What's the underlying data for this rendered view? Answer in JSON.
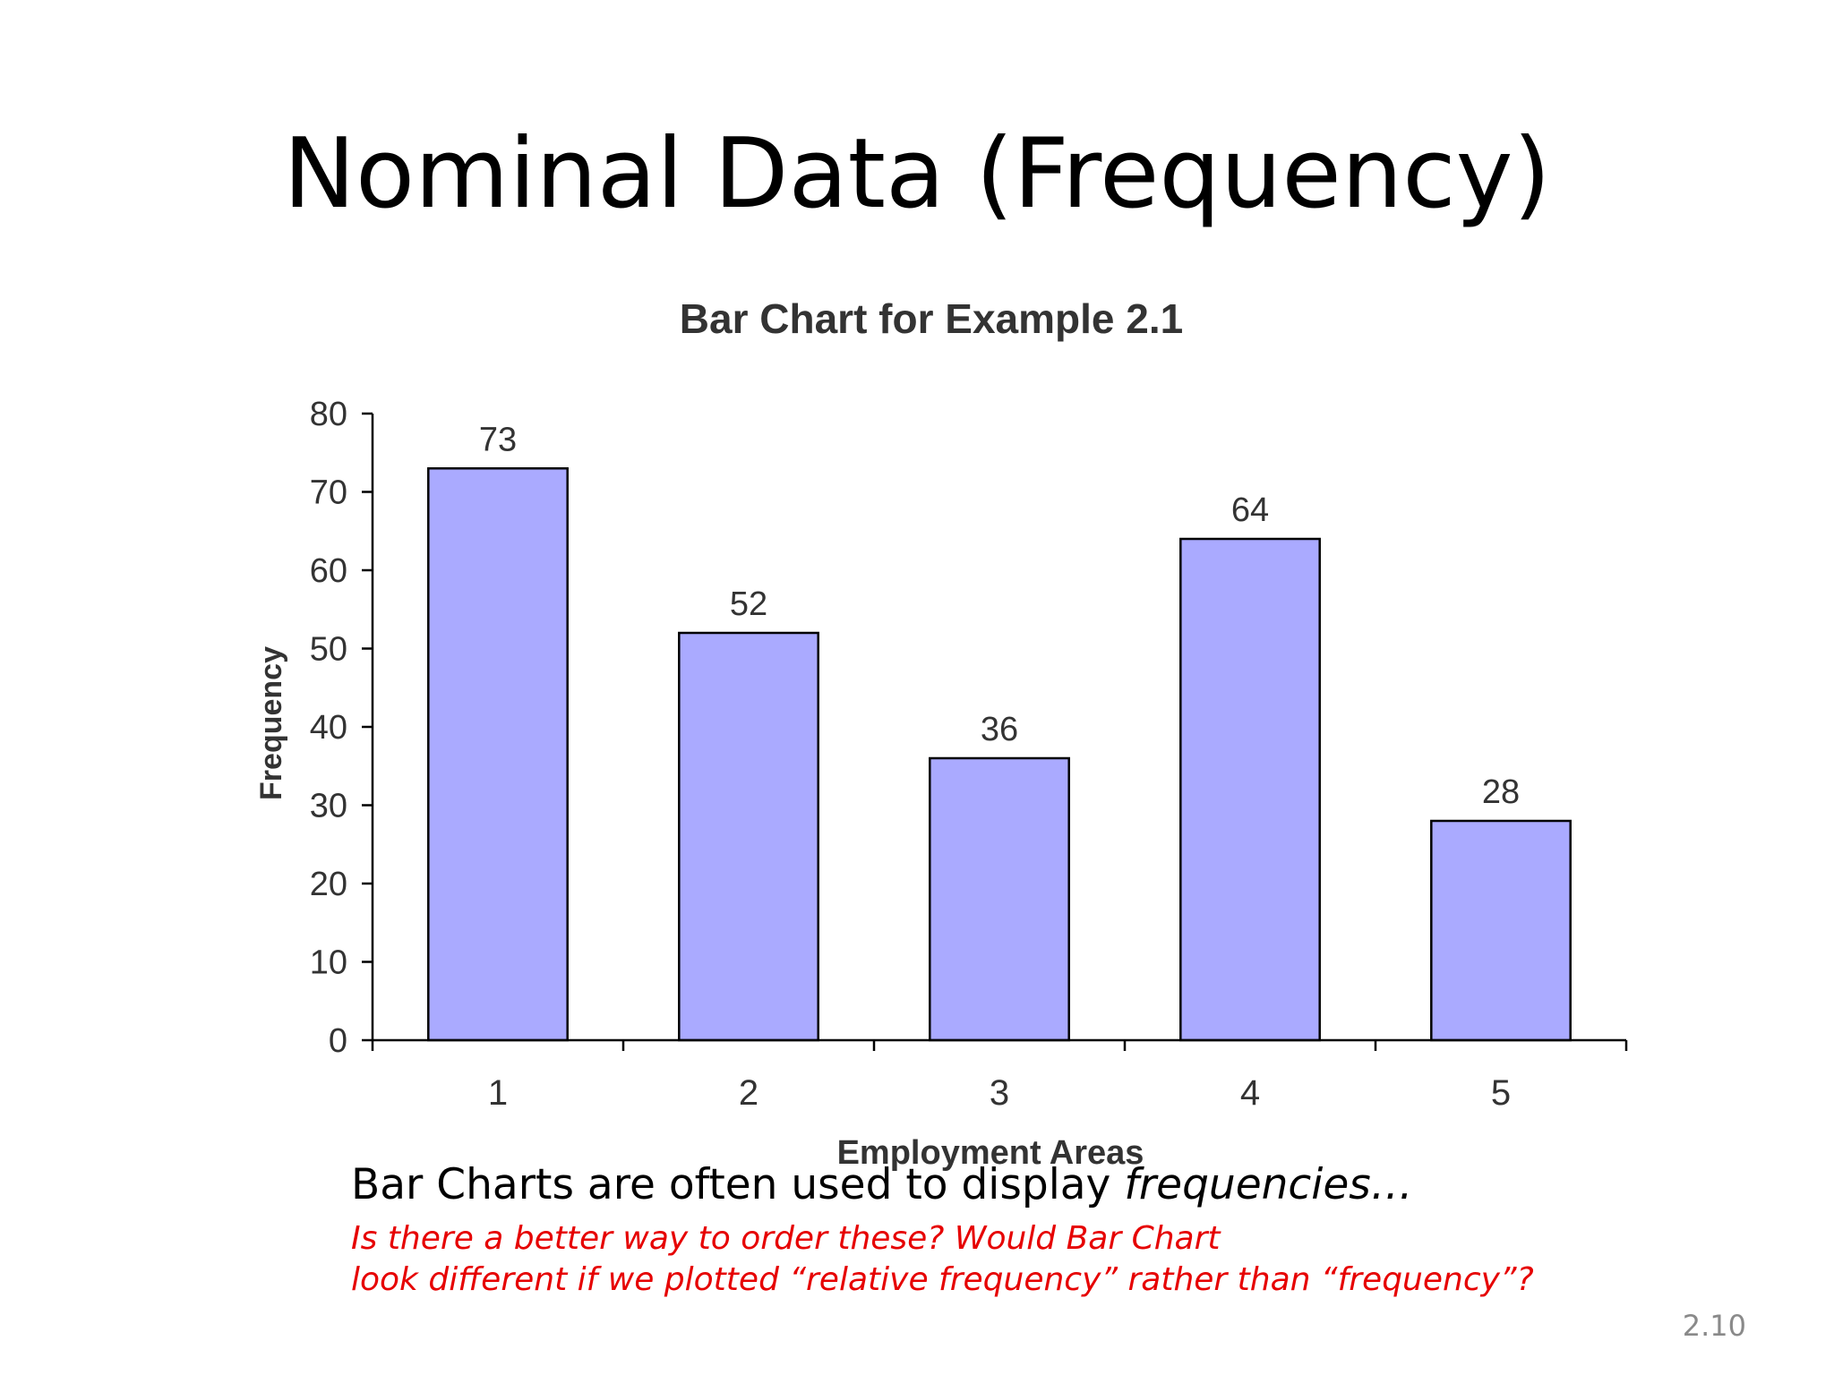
{
  "slide": {
    "title": "Nominal Data (Frequency)",
    "caption_text": "Bar Charts are often used to display ",
    "caption_emphasis": "frequencies…",
    "question_line1": "Is there a better way to order these? Would Bar Chart",
    "question_line2": "look different if we plotted “relative frequency” rather than “frequency”?",
    "slide_number": "2.10"
  },
  "colors": {
    "bar_fill": "#aaaaff",
    "bar_stroke": "#000000",
    "question_text": "#e60000",
    "axis_text": "#333333"
  },
  "chart_data": {
    "type": "bar",
    "title": "Bar Chart for Example 2.1",
    "xlabel": "Employment Areas",
    "ylabel": "Frequency",
    "categories": [
      "1",
      "2",
      "3",
      "4",
      "5"
    ],
    "values": [
      73,
      52,
      36,
      64,
      28
    ],
    "data_labels": [
      "73",
      "52",
      "36",
      "64",
      "28"
    ],
    "ylim": [
      0,
      80
    ],
    "yticks": [
      0,
      10,
      20,
      30,
      40,
      50,
      60,
      70,
      80
    ],
    "grid": false,
    "legend": "none"
  }
}
